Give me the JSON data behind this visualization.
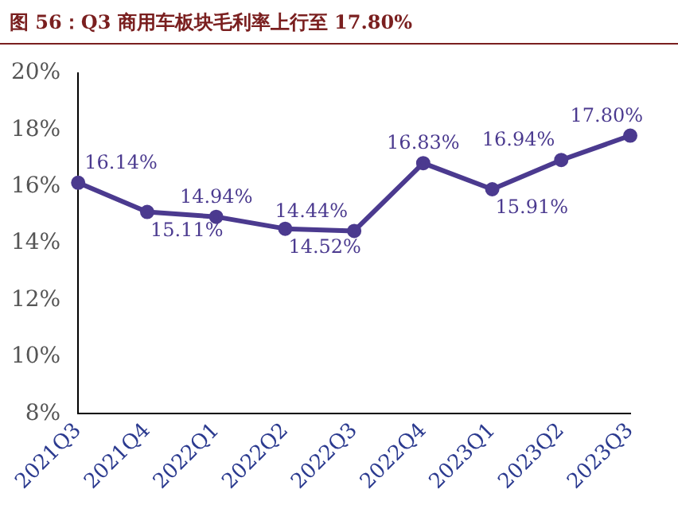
{
  "chart_data": {
    "type": "line",
    "title": "图 56：Q3 商用车板块毛利率上行至 17.80%",
    "categories": [
      "2021Q3",
      "2021Q4",
      "2022Q1",
      "2022Q2",
      "2022Q3",
      "2022Q4",
      "2023Q1",
      "2023Q2",
      "2023Q3"
    ],
    "series": [
      {
        "color": "#4b3a8f",
        "values": [
          16.14,
          15.11,
          14.94,
          14.52,
          14.44,
          16.83,
          15.91,
          16.94,
          17.8
        ],
        "value_labels": [
          "16.14%",
          "15.11%",
          "14.94%",
          "14.52%",
          "14.44%",
          "16.83%",
          "15.91%",
          "16.94%",
          "17.80%"
        ]
      }
    ],
    "ylim": [
      8,
      20
    ],
    "yticks": [
      {
        "value": 8,
        "label": "8%"
      },
      {
        "value": 10,
        "label": "10%"
      },
      {
        "value": 12,
        "label": "12%"
      },
      {
        "value": 14,
        "label": "14%"
      },
      {
        "value": 16,
        "label": "16%"
      },
      {
        "value": 18,
        "label": "18%"
      },
      {
        "value": 20,
        "label": "20%"
      }
    ],
    "grid": false,
    "legend": false,
    "marker": "circle",
    "line_style": "solid"
  }
}
